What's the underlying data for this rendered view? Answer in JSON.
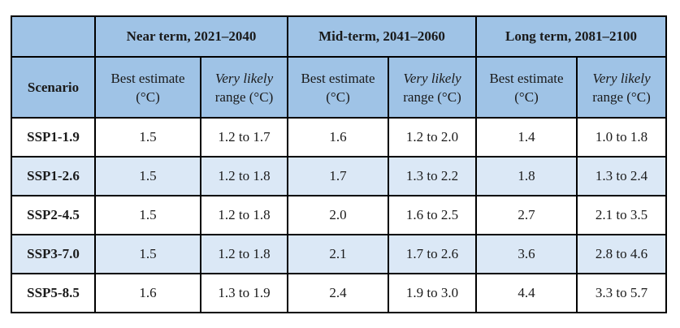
{
  "table": {
    "groups": [
      "Near term, 2021–2040",
      "Mid-term, 2041–2060",
      "Long term, 2081–2100"
    ],
    "scenario_header": "Scenario",
    "best_estimate": {
      "line1": "Best estimate",
      "line2": "(°C)"
    },
    "likely_range": {
      "line1": "Very likely",
      "line2": "range (°C)"
    },
    "rows": [
      {
        "scenario": "SSP1-1.9",
        "near_best": "1.5",
        "near_range": "1.2 to 1.7",
        "mid_best": "1.6",
        "mid_range": "1.2 to 2.0",
        "long_best": "1.4",
        "long_range": "1.0 to 1.8"
      },
      {
        "scenario": "SSP1-2.6",
        "near_best": "1.5",
        "near_range": "1.2 to 1.8",
        "mid_best": "1.7",
        "mid_range": "1.3 to 2.2",
        "long_best": "1.8",
        "long_range": "1.3 to 2.4"
      },
      {
        "scenario": "SSP2-4.5",
        "near_best": "1.5",
        "near_range": "1.2 to 1.8",
        "mid_best": "2.0",
        "mid_range": "1.6 to 2.5",
        "long_best": "2.7",
        "long_range": "2.1 to 3.5"
      },
      {
        "scenario": "SSP3-7.0",
        "near_best": "1.5",
        "near_range": "1.2 to 1.8",
        "mid_best": "2.1",
        "mid_range": "1.7 to 2.6",
        "long_best": "3.6",
        "long_range": "2.8 to 4.6"
      },
      {
        "scenario": "SSP5-8.5",
        "near_best": "1.6",
        "near_range": "1.3 to 1.9",
        "mid_best": "2.4",
        "mid_range": "1.9 to 3.0",
        "long_best": "4.4",
        "long_range": "3.3 to 5.7"
      }
    ]
  }
}
